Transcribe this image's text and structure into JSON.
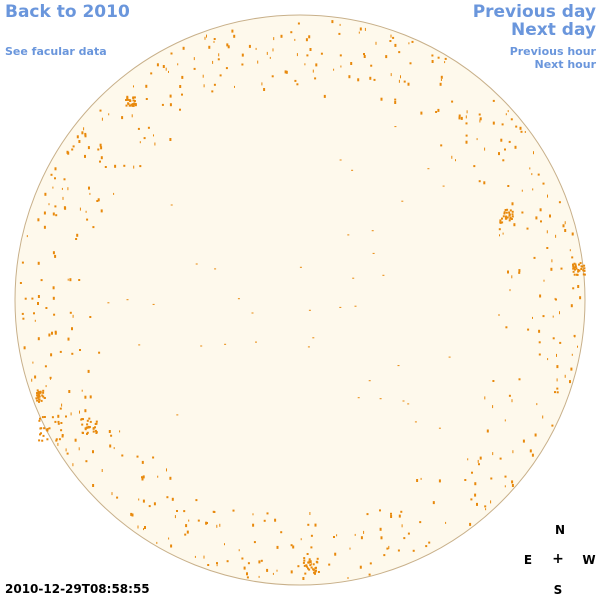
{
  "nav": {
    "back": "Back to 2010",
    "facular": "See facular data",
    "prev_day": "Previous day",
    "next_day": "Next day",
    "prev_hour": "Previous hour",
    "next_hour": "Next hour"
  },
  "disk": {
    "fill_color": "#fef9ec",
    "limb_color": "#c8b08a",
    "facula_color": "#e8890c"
  },
  "compass": {
    "north": "N",
    "east": "E",
    "center": "+",
    "west": "W",
    "south": "S"
  },
  "timestamp": "2010-12-29T08:58:55"
}
